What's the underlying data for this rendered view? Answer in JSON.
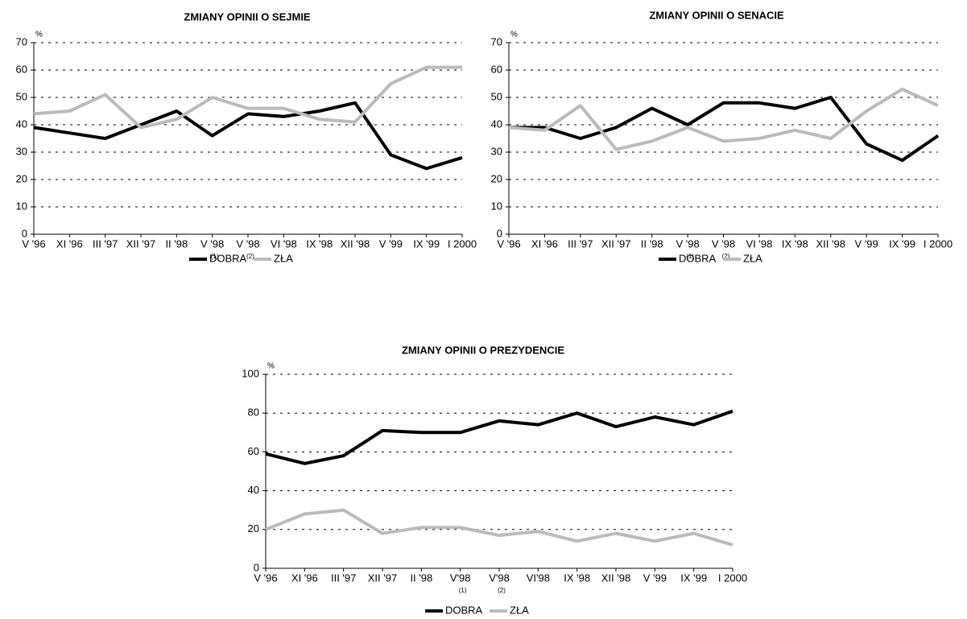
{
  "chart_data": [
    {
      "type": "line",
      "title": "ZMIANY OPINII O SEJMIE",
      "unit": "%",
      "categories": [
        "V '96",
        "XI '96",
        "III '97",
        "XII '97",
        "II '98",
        "V '98",
        "V '98",
        "VI '98",
        "IX '98",
        "XII '98",
        "V '99",
        "IX '99",
        "I 2000"
      ],
      "category_notes": [
        null,
        null,
        null,
        null,
        null,
        "(1)",
        "(2)",
        null,
        null,
        null,
        null,
        null,
        null
      ],
      "series": [
        {
          "name": "DOBRA",
          "color": "#000000",
          "values": [
            39,
            37,
            35,
            40,
            45,
            36,
            44,
            43,
            45,
            48,
            29,
            24,
            28
          ]
        },
        {
          "name": "ZŁA",
          "color": "#bbbbbb",
          "values": [
            44,
            45,
            51,
            39,
            42,
            50,
            46,
            46,
            42,
            41,
            55,
            61,
            61
          ]
        }
      ],
      "ylim": [
        0,
        70
      ],
      "yticks": [
        0,
        10,
        20,
        30,
        40,
        50,
        60,
        70
      ],
      "grid": true,
      "legend": "bottom"
    },
    {
      "type": "line",
      "title": "ZMIANY OPINII O SENACIE",
      "unit": "%",
      "categories": [
        "V '96",
        "XI '96",
        "III '97",
        "XII '97",
        "II '98",
        "V '98",
        "V '98",
        "VI '98",
        "IX '98",
        "XII '98",
        "V '99",
        "IX '99",
        "I 2000"
      ],
      "category_notes": [
        null,
        null,
        null,
        null,
        null,
        "(1)",
        "(2)",
        null,
        null,
        null,
        null,
        null,
        null
      ],
      "series": [
        {
          "name": "DOBRA",
          "color": "#000000",
          "values": [
            39,
            39,
            35,
            39,
            46,
            40,
            48,
            48,
            46,
            50,
            33,
            27,
            36
          ]
        },
        {
          "name": "ZŁA",
          "color": "#bbbbbb",
          "values": [
            39,
            38,
            47,
            31,
            34,
            39,
            34,
            35,
            38,
            35,
            45,
            53,
            47
          ]
        }
      ],
      "ylim": [
        0,
        70
      ],
      "yticks": [
        0,
        10,
        20,
        30,
        40,
        50,
        60,
        70
      ],
      "grid": true,
      "legend": "bottom"
    },
    {
      "type": "line",
      "title": "ZMIANY OPINII O PREZYDENCIE",
      "unit": "%",
      "categories": [
        "V '96",
        "XI '96",
        "III '97",
        "XII '97",
        "II '98",
        "V'98",
        "V'98",
        "VI'98",
        "IX '98",
        "XII '98",
        "V '99",
        "IX '99",
        "I 2000"
      ],
      "category_notes": [
        null,
        null,
        null,
        null,
        null,
        "(1)",
        "(2)",
        null,
        null,
        null,
        null,
        null,
        null
      ],
      "series": [
        {
          "name": "DOBRA",
          "color": "#000000",
          "values": [
            59,
            54,
            58,
            71,
            70,
            70,
            76,
            74,
            80,
            73,
            78,
            74,
            81
          ]
        },
        {
          "name": "ZŁA",
          "color": "#bbbbbb",
          "values": [
            20,
            28,
            30,
            18,
            21,
            21,
            17,
            19,
            14,
            18,
            14,
            18,
            12
          ]
        }
      ],
      "ylim": [
        0,
        100
      ],
      "yticks": [
        0,
        20,
        40,
        60,
        80,
        100
      ],
      "grid": true,
      "legend": "bottom"
    }
  ]
}
